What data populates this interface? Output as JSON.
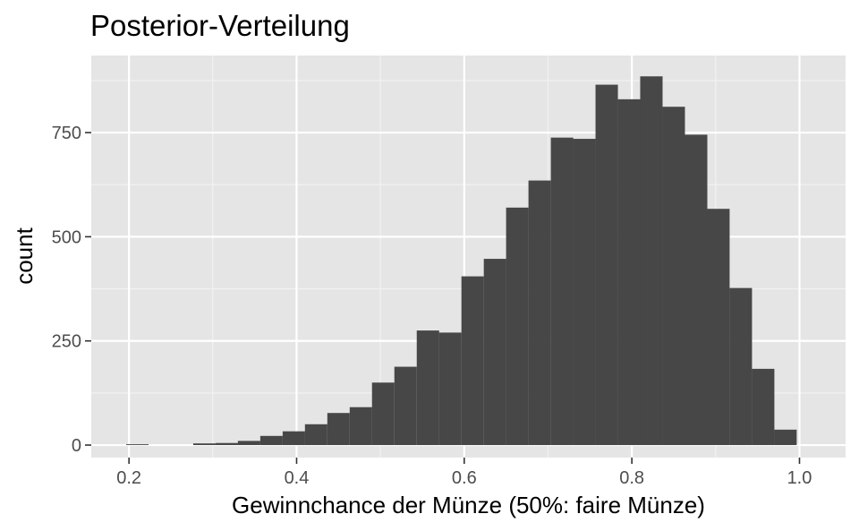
{
  "chart_data": {
    "type": "bar",
    "title": "Posterior-Verteilung",
    "xlabel": "Gewinnchance der Münze (50%: faire Münze)",
    "ylabel": "count",
    "xlim": [
      0.155,
      1.055
    ],
    "ylim": [
      -30,
      935
    ],
    "x_ticks": [
      0.2,
      0.4,
      0.6,
      0.8,
      1.0
    ],
    "x_tick_labels": [
      "0.2",
      "0.4",
      "0.6",
      "0.8",
      "1.0"
    ],
    "y_ticks": [
      0,
      250,
      500,
      750
    ],
    "y_tick_labels": [
      "0",
      "250",
      "500",
      "750"
    ],
    "x_minor_ticks": [
      0.3,
      0.5,
      0.7,
      0.9
    ],
    "y_minor_ticks": [
      125,
      375,
      625,
      875
    ],
    "bar_color": "#474747",
    "panel_color": "#e5e5e5",
    "bin_width": 0.0267,
    "bins": [
      {
        "x": 0.21,
        "count": 2
      },
      {
        "x": 0.2367,
        "count": 0
      },
      {
        "x": 0.2633,
        "count": 0
      },
      {
        "x": 0.29,
        "count": 4
      },
      {
        "x": 0.3167,
        "count": 5
      },
      {
        "x": 0.3433,
        "count": 10
      },
      {
        "x": 0.37,
        "count": 22
      },
      {
        "x": 0.3967,
        "count": 33
      },
      {
        "x": 0.4233,
        "count": 50
      },
      {
        "x": 0.45,
        "count": 77
      },
      {
        "x": 0.4767,
        "count": 91
      },
      {
        "x": 0.5033,
        "count": 150
      },
      {
        "x": 0.53,
        "count": 188
      },
      {
        "x": 0.5567,
        "count": 275
      },
      {
        "x": 0.5833,
        "count": 270
      },
      {
        "x": 0.61,
        "count": 405
      },
      {
        "x": 0.6367,
        "count": 447
      },
      {
        "x": 0.6633,
        "count": 570
      },
      {
        "x": 0.69,
        "count": 635
      },
      {
        "x": 0.7167,
        "count": 738
      },
      {
        "x": 0.7433,
        "count": 735
      },
      {
        "x": 0.77,
        "count": 865
      },
      {
        "x": 0.7967,
        "count": 830
      },
      {
        "x": 0.8233,
        "count": 885
      },
      {
        "x": 0.85,
        "count": 812
      },
      {
        "x": 0.8767,
        "count": 745
      },
      {
        "x": 0.9033,
        "count": 567
      },
      {
        "x": 0.93,
        "count": 377
      },
      {
        "x": 0.9567,
        "count": 183
      },
      {
        "x": 0.9833,
        "count": 37
      }
    ]
  }
}
